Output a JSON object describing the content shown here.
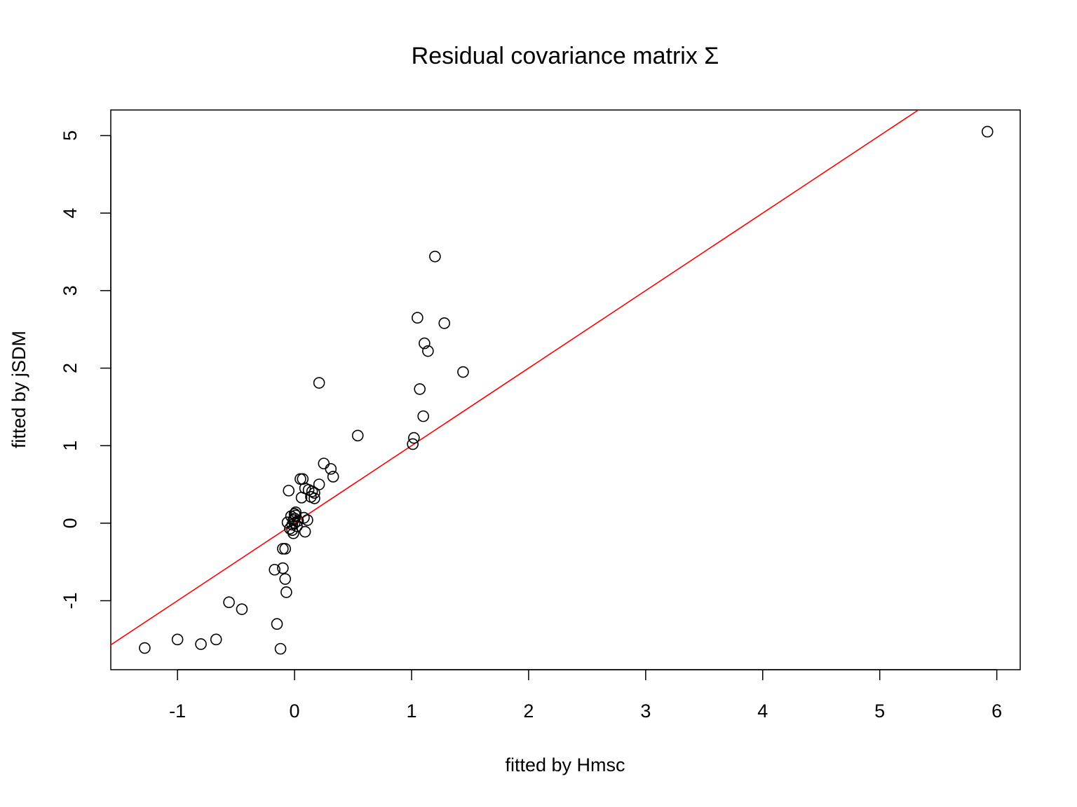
{
  "chart_data": {
    "type": "scatter",
    "title": "Residual covariance matrix Σ",
    "xlabel": "fitted by Hmsc",
    "ylabel": "fitted by jSDM",
    "xlim": [
      -1.57,
      6.2
    ],
    "ylim": [
      -1.89,
      5.33
    ],
    "xticks": [
      -1,
      0,
      1,
      2,
      3,
      4,
      5,
      6
    ],
    "yticks": [
      -1,
      0,
      1,
      2,
      3,
      4,
      5
    ],
    "xtick_labels": [
      "-1",
      "0",
      "1",
      "2",
      "3",
      "4",
      "5",
      "6"
    ],
    "ytick_labels": [
      "-1",
      "0",
      "1",
      "2",
      "3",
      "4",
      "5"
    ],
    "grid": false,
    "legend": "none",
    "point_color": "#000000",
    "line_color": "#ff0000",
    "reference_line": {
      "intercept": 0,
      "slope": 1
    },
    "points": [
      [
        5.92,
        5.05
      ],
      [
        1.2,
        3.44
      ],
      [
        1.05,
        2.65
      ],
      [
        1.28,
        2.58
      ],
      [
        1.11,
        2.32
      ],
      [
        1.14,
        2.22
      ],
      [
        1.44,
        1.95
      ],
      [
        0.21,
        1.81
      ],
      [
        1.07,
        1.73
      ],
      [
        1.1,
        1.38
      ],
      [
        0.54,
        1.13
      ],
      [
        1.02,
        1.1
      ],
      [
        1.01,
        1.02
      ],
      [
        0.25,
        0.77
      ],
      [
        0.31,
        0.7
      ],
      [
        0.33,
        0.6
      ],
      [
        0.05,
        0.57
      ],
      [
        0.07,
        0.57
      ],
      [
        0.21,
        0.5
      ],
      [
        0.09,
        0.45
      ],
      [
        0.12,
        0.43
      ],
      [
        -0.05,
        0.42
      ],
      [
        0.15,
        0.41
      ],
      [
        0.17,
        0.39
      ],
      [
        0.14,
        0.34
      ],
      [
        0.06,
        0.33
      ],
      [
        0.17,
        0.32
      ],
      [
        0.01,
        0.14
      ],
      [
        0.0,
        0.12
      ],
      [
        0.01,
        0.1
      ],
      [
        -0.03,
        0.09
      ],
      [
        0.08,
        0.07
      ],
      [
        0.0,
        0.06
      ],
      [
        -0.01,
        0.04
      ],
      [
        0.11,
        0.04
      ],
      [
        0.03,
        0.03
      ],
      [
        -0.06,
        0.01
      ],
      [
        0.0,
        0.0
      ],
      [
        -0.02,
        -0.02
      ],
      [
        0.02,
        -0.04
      ],
      [
        -0.04,
        -0.07
      ],
      [
        -0.02,
        -0.09
      ],
      [
        0.09,
        -0.11
      ],
      [
        -0.01,
        -0.13
      ],
      [
        -0.1,
        -0.33
      ],
      [
        -0.08,
        -0.33
      ],
      [
        -0.17,
        -0.6
      ],
      [
        -0.1,
        -0.58
      ],
      [
        -0.08,
        -0.72
      ],
      [
        -0.07,
        -0.89
      ],
      [
        -0.56,
        -1.02
      ],
      [
        -0.45,
        -1.11
      ],
      [
        -0.15,
        -1.3
      ],
      [
        -1.0,
        -1.5
      ],
      [
        -0.67,
        -1.5
      ],
      [
        -0.8,
        -1.56
      ],
      [
        -1.28,
        -1.61
      ],
      [
        -0.12,
        -1.62
      ]
    ]
  }
}
